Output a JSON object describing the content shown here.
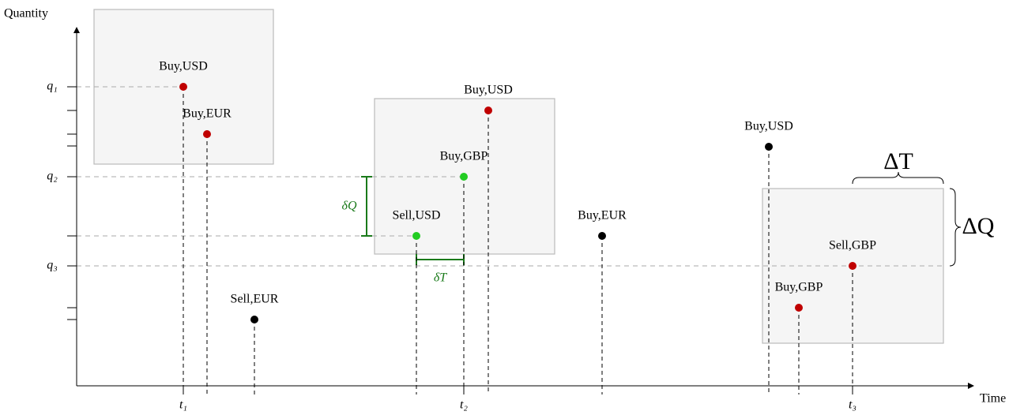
{
  "axes": {
    "y_label": "Quantity",
    "x_label": "Time",
    "y_ticks": [
      "q₁",
      "q₂",
      "q₃"
    ],
    "x_ticks": [
      "t₁",
      "t₂",
      "t₃"
    ]
  },
  "points": [
    {
      "label": "Buy,USD",
      "color": "#c00000"
    },
    {
      "label": "Buy,EUR",
      "color": "#c00000"
    },
    {
      "label": "Sell,EUR",
      "color": "#000000"
    },
    {
      "label": "Sell,USD",
      "color": "#22cc22"
    },
    {
      "label": "Buy,GBP",
      "color": "#22cc22"
    },
    {
      "label": "Buy,USD",
      "color": "#c00000"
    },
    {
      "label": "Buy,EUR",
      "color": "#000000"
    },
    {
      "label": "Buy,USD",
      "color": "#000000"
    },
    {
      "label": "Buy,GBP",
      "color": "#c00000"
    },
    {
      "label": "Sell,GBP",
      "color": "#c00000"
    }
  ],
  "annotations": {
    "delta_q_small": "δQ",
    "delta_t_small": "δT",
    "delta_t_big": "ΔT",
    "delta_q_big": "ΔQ"
  }
}
